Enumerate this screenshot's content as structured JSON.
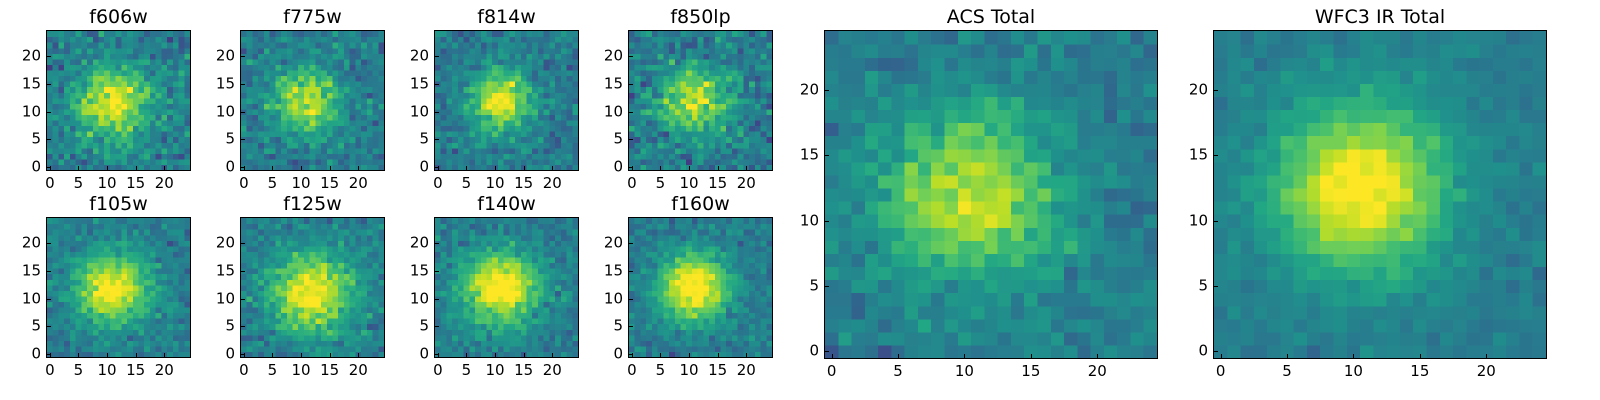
{
  "chart_data": [
    {
      "type": "heatmap",
      "id": "f606w",
      "title": "f606w",
      "grid": [
        25,
        25
      ],
      "center": [
        11,
        11.5
      ],
      "peak": 0.55,
      "sigma": 4.5,
      "noise": 0.3,
      "seed": 11,
      "xlim": [
        0,
        24
      ],
      "ylim": [
        0,
        24
      ],
      "xticks": [
        0,
        5,
        10,
        15,
        20
      ],
      "xtick_labels": [
        "0",
        "5",
        "10",
        "15",
        "20"
      ],
      "yticks": [
        0,
        5,
        10,
        15,
        20
      ],
      "ytick_labels": [
        "0",
        "5",
        "10",
        "15",
        "20"
      ],
      "colormap": "viridis"
    },
    {
      "type": "heatmap",
      "id": "f775w",
      "title": "f775w",
      "grid": [
        25,
        25
      ],
      "center": [
        11,
        12
      ],
      "peak": 0.5,
      "sigma": 4,
      "noise": 0.28,
      "seed": 23,
      "xlim": [
        0,
        24
      ],
      "ylim": [
        0,
        24
      ],
      "xticks": [
        0,
        5,
        10,
        15,
        20
      ],
      "xtick_labels": [
        "0",
        "5",
        "10",
        "15",
        "20"
      ],
      "yticks": [
        0,
        5,
        10,
        15,
        20
      ],
      "ytick_labels": [
        "0",
        "5",
        "10",
        "15",
        "20"
      ],
      "colormap": "viridis"
    },
    {
      "type": "heatmap",
      "id": "f814w",
      "title": "f814w",
      "grid": [
        25,
        25
      ],
      "center": [
        11,
        12
      ],
      "peak": 0.6,
      "sigma": 3.5,
      "noise": 0.26,
      "seed": 37,
      "xlim": [
        0,
        24
      ],
      "ylim": [
        0,
        24
      ],
      "xticks": [
        0,
        5,
        10,
        15,
        20
      ],
      "xtick_labels": [
        "0",
        "5",
        "10",
        "15",
        "20"
      ],
      "yticks": [
        0,
        5,
        10,
        15,
        20
      ],
      "ytick_labels": [
        "0",
        "5",
        "10",
        "15",
        "20"
      ],
      "colormap": "viridis"
    },
    {
      "type": "heatmap",
      "id": "f850lp",
      "title": "f850lp",
      "grid": [
        25,
        25
      ],
      "center": [
        11,
        12
      ],
      "peak": 0.5,
      "sigma": 4,
      "noise": 0.32,
      "seed": 41,
      "xlim": [
        0,
        24
      ],
      "ylim": [
        0,
        24
      ],
      "xticks": [
        0,
        5,
        10,
        15,
        20
      ],
      "xtick_labels": [
        "0",
        "5",
        "10",
        "15",
        "20"
      ],
      "yticks": [
        0,
        5,
        10,
        15,
        20
      ],
      "ytick_labels": [
        "0",
        "5",
        "10",
        "15",
        "20"
      ],
      "colormap": "viridis"
    },
    {
      "type": "heatmap",
      "id": "f105w",
      "title": "f105w",
      "grid": [
        25,
        25
      ],
      "center": [
        11,
        12
      ],
      "peak": 0.6,
      "sigma": 4.5,
      "noise": 0.22,
      "seed": 53,
      "xlim": [
        0,
        24
      ],
      "ylim": [
        0,
        24
      ],
      "xticks": [
        0,
        5,
        10,
        15,
        20
      ],
      "xtick_labels": [
        "0",
        "5",
        "10",
        "15",
        "20"
      ],
      "yticks": [
        0,
        5,
        10,
        15,
        20
      ],
      "ytick_labels": [
        "0",
        "5",
        "10",
        "15",
        "20"
      ],
      "colormap": "viridis"
    },
    {
      "type": "heatmap",
      "id": "f125w",
      "title": "f125w",
      "grid": [
        25,
        25
      ],
      "center": [
        12,
        11
      ],
      "peak": 0.6,
      "sigma": 5,
      "noise": 0.25,
      "seed": 67,
      "xlim": [
        0,
        24
      ],
      "ylim": [
        0,
        24
      ],
      "xticks": [
        0,
        5,
        10,
        15,
        20
      ],
      "xtick_labels": [
        "0",
        "5",
        "10",
        "15",
        "20"
      ],
      "yticks": [
        0,
        5,
        10,
        15,
        20
      ],
      "ytick_labels": [
        "0",
        "5",
        "10",
        "15",
        "20"
      ],
      "colormap": "viridis"
    },
    {
      "type": "heatmap",
      "id": "f140w",
      "title": "f140w",
      "grid": [
        25,
        25
      ],
      "center": [
        11,
        12
      ],
      "peak": 0.65,
      "sigma": 4.5,
      "noise": 0.22,
      "seed": 71,
      "xlim": [
        0,
        24
      ],
      "ylim": [
        0,
        24
      ],
      "xticks": [
        0,
        5,
        10,
        15,
        20
      ],
      "xtick_labels": [
        "0",
        "5",
        "10",
        "15",
        "20"
      ],
      "yticks": [
        0,
        5,
        10,
        15,
        20
      ],
      "ytick_labels": [
        "0",
        "5",
        "10",
        "15",
        "20"
      ],
      "colormap": "viridis"
    },
    {
      "type": "heatmap",
      "id": "f160w",
      "title": "f160w",
      "grid": [
        25,
        25
      ],
      "center": [
        11,
        12
      ],
      "peak": 0.7,
      "sigma": 4,
      "noise": 0.22,
      "seed": 83,
      "xlim": [
        0,
        24
      ],
      "ylim": [
        0,
        24
      ],
      "xticks": [
        0,
        5,
        10,
        15,
        20
      ],
      "xtick_labels": [
        "0",
        "5",
        "10",
        "15",
        "20"
      ],
      "yticks": [
        0,
        5,
        10,
        15,
        20
      ],
      "ytick_labels": [
        "0",
        "5",
        "10",
        "15",
        "20"
      ],
      "colormap": "viridis"
    },
    {
      "type": "heatmap",
      "id": "acs-total",
      "title": "ACS Total",
      "grid": [
        25,
        25
      ],
      "center": [
        10.5,
        12
      ],
      "peak": 0.5,
      "sigma": 4.5,
      "noise": 0.2,
      "seed": 97,
      "xlim": [
        0,
        24
      ],
      "ylim": [
        0,
        24
      ],
      "xticks": [
        0,
        5,
        10,
        15,
        20
      ],
      "xtick_labels": [
        "0",
        "5",
        "10",
        "15",
        "20"
      ],
      "yticks": [
        0,
        5,
        10,
        15,
        20
      ],
      "ytick_labels": [
        "0",
        "5",
        "10",
        "15",
        "20"
      ],
      "colormap": "viridis"
    },
    {
      "type": "heatmap",
      "id": "wfc3-ir-total",
      "title": "WFC3 IR Total",
      "grid": [
        25,
        25
      ],
      "center": [
        10.5,
        12.5
      ],
      "peak": 0.62,
      "sigma": 4.5,
      "noise": 0.12,
      "seed": 101,
      "xlim": [
        0,
        24
      ],
      "ylim": [
        0,
        24
      ],
      "xticks": [
        0,
        5,
        10,
        15,
        20
      ],
      "xtick_labels": [
        "0",
        "5",
        "10",
        "15",
        "20"
      ],
      "yticks": [
        0,
        5,
        10,
        15,
        20
      ],
      "ytick_labels": [
        "0",
        "5",
        "10",
        "15",
        "20"
      ],
      "colormap": "viridis"
    }
  ]
}
